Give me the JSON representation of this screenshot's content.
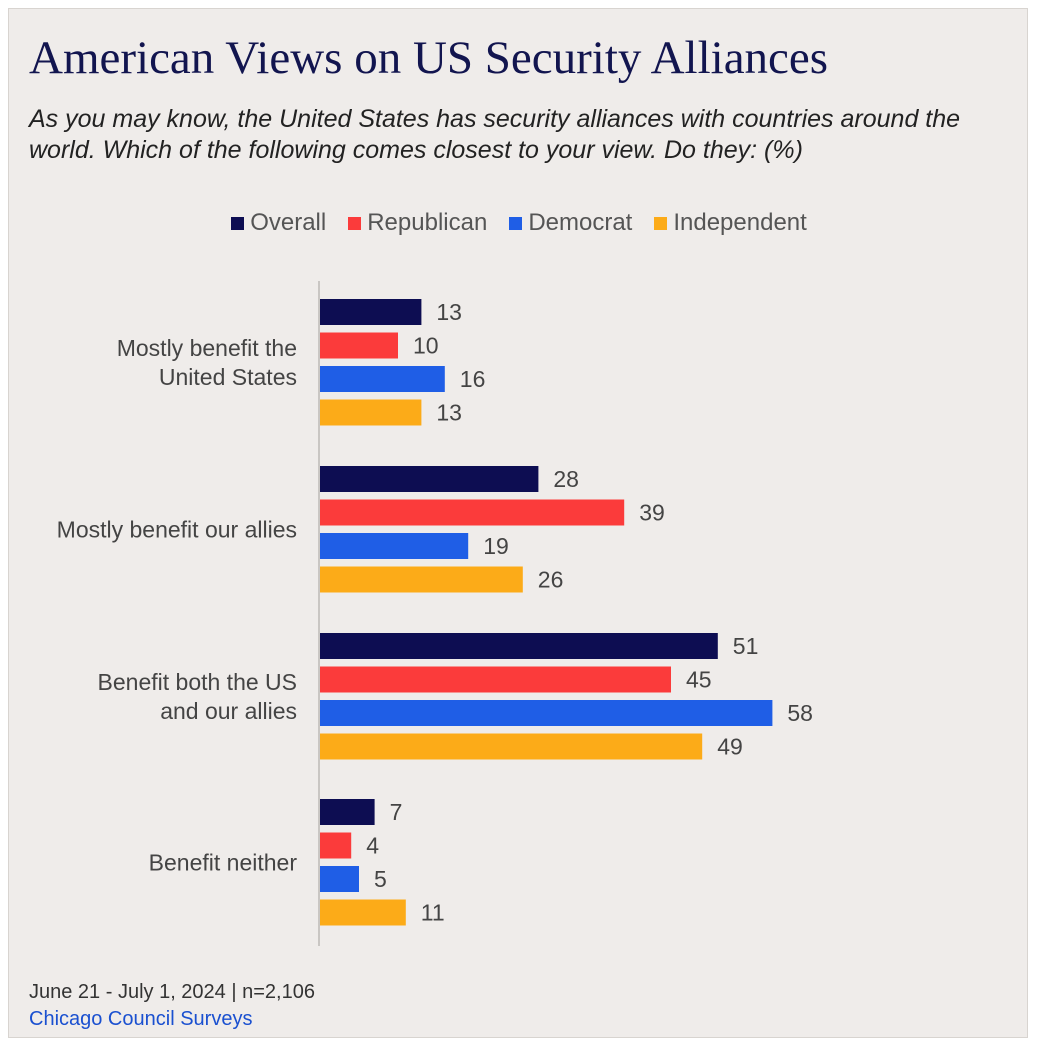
{
  "header": {
    "title": "American Views on US Security Alliances",
    "subtitle": "As you may know, the United States has security alliances with countries around the world. Which of the following comes closest to your view. Do they:  (%)"
  },
  "footer": {
    "date_sample": "June 21 - July 1, 2024 | n=2,106",
    "source": "Chicago Council Surveys"
  },
  "colors": {
    "Overall": "#0d0d52",
    "Republican": "#fb3b3b",
    "Democrat": "#1f5ee6",
    "Independent": "#fcab18"
  },
  "chart_data": {
    "type": "bar",
    "orientation": "horizontal",
    "categories": [
      [
        "Mostly benefit the",
        "United States"
      ],
      [
        "Mostly benefit our allies"
      ],
      [
        "Benefit both the US",
        "and our allies"
      ],
      [
        "Benefit neither"
      ]
    ],
    "series": [
      {
        "name": "Overall",
        "values": [
          13,
          28,
          51,
          7
        ]
      },
      {
        "name": "Republican",
        "values": [
          10,
          39,
          45,
          4
        ]
      },
      {
        "name": "Democrat",
        "values": [
          16,
          19,
          58,
          5
        ]
      },
      {
        "name": "Independent",
        "values": [
          13,
          26,
          49,
          11
        ]
      }
    ],
    "legend_position": "top-center",
    "grid": false,
    "data_labels": true,
    "xlim": [
      0,
      60
    ]
  }
}
